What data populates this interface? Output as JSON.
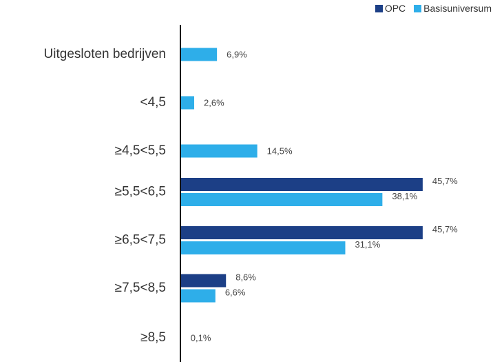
{
  "chart_data": {
    "type": "bar",
    "orientation": "horizontal",
    "categories": [
      "Uitgesloten bedrijven",
      "<4,5",
      "≥4,5<5,5",
      "≥5,5<6,5",
      "≥6,5<7,5",
      "≥7,5<8,5",
      "≥8,5"
    ],
    "series": [
      {
        "name": "OPC",
        "color": "#1c3f86",
        "values": [
          null,
          null,
          null,
          45.7,
          45.7,
          8.6,
          null
        ],
        "labels": [
          "",
          "",
          "",
          "45,7%",
          "45,7%",
          "8,6%",
          ""
        ]
      },
      {
        "name": "Basisuniversum",
        "color": "#2eaee9",
        "values": [
          6.9,
          2.6,
          14.5,
          38.1,
          31.1,
          6.6,
          0.1
        ],
        "labels": [
          "6,9%",
          "2,6%",
          "14,5%",
          "38,1%",
          "31,1%",
          "6,6%",
          "0,1%"
        ]
      }
    ],
    "xlim": [
      0,
      50
    ],
    "grid": false,
    "legend_position": "top-right"
  }
}
